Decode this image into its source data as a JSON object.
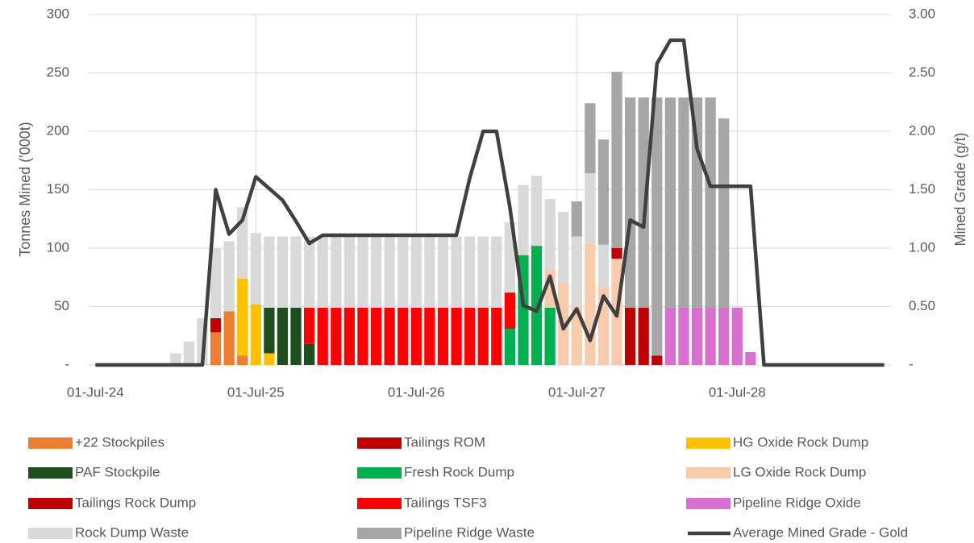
{
  "chart_data": {
    "type": "bar",
    "categories": [
      "01-Jul-24",
      null,
      null,
      null,
      null,
      null,
      null,
      null,
      null,
      null,
      null,
      null,
      "01-Jul-25",
      null,
      null,
      null,
      null,
      null,
      null,
      null,
      null,
      null,
      null,
      null,
      "01-Jul-26",
      null,
      null,
      null,
      null,
      null,
      null,
      null,
      null,
      null,
      null,
      null,
      "01-Jul-27",
      null,
      null,
      null,
      null,
      null,
      null,
      null,
      null,
      null,
      null,
      null,
      "01-Jul-28",
      null,
      null,
      null,
      null,
      null,
      null,
      null,
      null,
      null,
      null,
      null
    ],
    "ylabel": "Tonnes Mined ('000t)",
    "y2label": "Mined Grade (g/t)",
    "ylim": [
      0,
      300
    ],
    "yticks": [
      {
        "value": 0,
        "label": "-"
      },
      50,
      100,
      150,
      200,
      250,
      300
    ],
    "y2lim": [
      0,
      3
    ],
    "y2ticks": [
      {
        "value": 0,
        "label": "-"
      },
      {
        "value": 0.5,
        "label": "0.50"
      },
      {
        "value": 1,
        "label": "1.00"
      },
      {
        "value": 1.5,
        "label": "1.50"
      },
      {
        "value": 2,
        "label": "2.00"
      },
      {
        "value": 2.5,
        "label": "2.50"
      },
      {
        "value": 3,
        "label": "3.00"
      }
    ],
    "grid": true,
    "stacked": true,
    "legend": "bottom",
    "series": [
      {
        "name": "+22 Stockpiles",
        "color": "#ED7D31",
        "values": [
          null,
          null,
          null,
          null,
          null,
          null,
          null,
          null,
          null,
          28,
          46,
          8,
          null,
          null,
          null,
          null,
          null,
          null,
          null,
          null,
          null,
          null,
          null,
          null,
          null,
          null,
          null,
          null,
          null,
          null,
          null,
          null,
          null,
          null,
          null,
          null,
          null,
          null,
          null,
          null,
          null,
          null,
          null,
          null,
          null,
          null,
          null,
          null,
          null,
          null,
          null,
          null,
          null,
          null,
          null,
          null,
          null,
          null,
          null,
          null
        ]
      },
      {
        "name": "Tailings ROM",
        "color": "#C00000",
        "values": [
          null,
          null,
          null,
          null,
          null,
          null,
          null,
          null,
          null,
          12,
          null,
          null,
          null,
          null,
          null,
          null,
          null,
          null,
          null,
          null,
          null,
          null,
          null,
          null,
          null,
          null,
          null,
          null,
          null,
          null,
          null,
          null,
          null,
          null,
          null,
          null,
          null,
          null,
          null,
          null,
          null,
          null,
          null,
          null,
          null,
          null,
          null,
          null,
          null,
          null,
          null,
          null,
          null,
          null,
          null,
          null,
          null,
          null,
          null,
          null
        ]
      },
      {
        "name": "HG Oxide Rock Dump",
        "color": "#FFC000",
        "values": [
          null,
          null,
          null,
          null,
          null,
          null,
          null,
          null,
          null,
          null,
          null,
          66,
          52,
          10,
          null,
          null,
          null,
          null,
          null,
          null,
          null,
          null,
          null,
          null,
          null,
          null,
          null,
          null,
          null,
          null,
          null,
          null,
          null,
          null,
          null,
          null,
          null,
          null,
          null,
          null,
          null,
          null,
          null,
          null,
          null,
          null,
          null,
          null,
          null,
          null,
          null,
          null,
          null,
          null,
          null,
          null,
          null,
          null,
          null,
          null
        ]
      },
      {
        "name": "PAF Stockpile",
        "color": "#1E4D20",
        "values": [
          null,
          null,
          null,
          null,
          null,
          null,
          null,
          null,
          null,
          null,
          null,
          null,
          null,
          39,
          49,
          49,
          18,
          null,
          null,
          null,
          null,
          null,
          null,
          null,
          null,
          null,
          null,
          null,
          null,
          null,
          null,
          null,
          null,
          null,
          null,
          null,
          null,
          null,
          null,
          null,
          null,
          null,
          null,
          null,
          null,
          null,
          null,
          null,
          null,
          null,
          null,
          null,
          null,
          null,
          null,
          null,
          null,
          null,
          null,
          null
        ]
      },
      {
        "name": "Fresh Rock Dump",
        "color": "#00B050",
        "values": [
          null,
          null,
          null,
          null,
          null,
          null,
          null,
          null,
          null,
          null,
          null,
          null,
          null,
          null,
          null,
          null,
          null,
          null,
          null,
          null,
          null,
          null,
          null,
          null,
          null,
          null,
          null,
          null,
          null,
          null,
          null,
          31,
          94,
          102,
          49,
          null,
          null,
          null,
          null,
          null,
          null,
          null,
          null,
          null,
          null,
          null,
          null,
          null,
          null,
          null,
          null,
          null,
          null,
          null,
          null,
          null,
          null,
          null,
          null,
          null
        ]
      },
      {
        "name": "LG Oxide Rock Dump",
        "color": "#F8CBAD",
        "values": [
          null,
          null,
          null,
          null,
          null,
          null,
          null,
          null,
          null,
          null,
          null,
          null,
          null,
          null,
          null,
          null,
          null,
          null,
          null,
          null,
          null,
          null,
          null,
          null,
          null,
          null,
          null,
          null,
          null,
          null,
          null,
          null,
          null,
          null,
          33,
          71,
          50,
          104,
          67,
          91,
          null,
          null,
          null,
          null,
          null,
          null,
          null,
          null,
          null,
          null,
          null,
          null,
          null,
          null,
          null,
          null,
          null,
          null,
          null,
          null
        ]
      },
      {
        "name": "Tailings Rock Dump",
        "color": "#BE0000",
        "values": [
          null,
          null,
          null,
          null,
          null,
          null,
          null,
          null,
          null,
          null,
          null,
          null,
          null,
          null,
          null,
          null,
          null,
          null,
          null,
          null,
          null,
          null,
          null,
          null,
          null,
          null,
          null,
          null,
          null,
          null,
          null,
          null,
          null,
          null,
          null,
          null,
          null,
          null,
          null,
          9,
          49,
          49,
          8,
          null,
          null,
          null,
          null,
          null,
          null,
          null,
          null,
          null,
          null,
          null,
          null,
          null,
          null,
          null,
          null,
          null
        ]
      },
      {
        "name": "Tailings TSF3",
        "color": "#FF0000",
        "values": [
          null,
          null,
          null,
          null,
          null,
          null,
          null,
          null,
          null,
          null,
          null,
          null,
          null,
          null,
          null,
          null,
          31,
          49,
          49,
          49,
          49,
          49,
          49,
          49,
          49,
          49,
          49,
          49,
          49,
          49,
          49,
          31,
          null,
          null,
          null,
          null,
          null,
          null,
          null,
          null,
          null,
          null,
          null,
          null,
          null,
          null,
          null,
          null,
          null,
          null,
          null,
          null,
          null,
          null,
          null,
          null,
          null,
          null,
          null,
          null
        ]
      },
      {
        "name": "Pipeline Ridge Oxide",
        "color": "#D86FD0",
        "values": [
          null,
          null,
          null,
          null,
          null,
          null,
          null,
          null,
          null,
          null,
          null,
          null,
          null,
          null,
          null,
          null,
          null,
          null,
          null,
          null,
          null,
          null,
          null,
          null,
          null,
          null,
          null,
          null,
          null,
          null,
          null,
          null,
          null,
          null,
          null,
          null,
          null,
          null,
          null,
          null,
          null,
          null,
          null,
          49,
          49,
          49,
          49,
          49,
          49,
          11,
          null,
          null,
          null,
          null,
          null,
          null,
          null,
          null,
          null,
          null
        ]
      },
      {
        "name": "Rock Dump Waste",
        "color": "#D9D9D9",
        "values": [
          null,
          null,
          null,
          null,
          null,
          null,
          10,
          20,
          40,
          60,
          60,
          61,
          61,
          61,
          61,
          61,
          61,
          61,
          61,
          61,
          61,
          61,
          61,
          61,
          61,
          61,
          61,
          61,
          61,
          61,
          61,
          60,
          60,
          60,
          60,
          60,
          60,
          60,
          36,
          null,
          null,
          null,
          null,
          null,
          null,
          null,
          null,
          null,
          null,
          null,
          null,
          null,
          null,
          null,
          null,
          null,
          null,
          null,
          null,
          null
        ]
      },
      {
        "name": "Pipeline Ridge Waste",
        "color": "#A6A6A6",
        "values": [
          null,
          null,
          null,
          null,
          null,
          null,
          null,
          null,
          null,
          null,
          null,
          null,
          null,
          null,
          null,
          null,
          null,
          null,
          null,
          null,
          null,
          null,
          null,
          null,
          null,
          null,
          null,
          null,
          null,
          null,
          null,
          null,
          null,
          null,
          null,
          null,
          30,
          60,
          90,
          151,
          180,
          180,
          221,
          180,
          180,
          180,
          180,
          162,
          null,
          null,
          null,
          null,
          null,
          null,
          null,
          null,
          null,
          null,
          null,
          null
        ]
      },
      {
        "name": "Average Mined Grade - Gold",
        "color": "#404040",
        "type": "line",
        "axis": "y2",
        "values": [
          0,
          0,
          0,
          0,
          0,
          0,
          0,
          0,
          0,
          1.5,
          1.12,
          1.24,
          1.61,
          1.51,
          1.41,
          1.23,
          1.04,
          1.11,
          1.11,
          1.11,
          1.11,
          1.11,
          1.11,
          1.11,
          1.11,
          1.11,
          1.11,
          1.11,
          1.6,
          2.0,
          2.0,
          1.35,
          0.51,
          0.46,
          0.76,
          0.31,
          0.48,
          0.21,
          0.59,
          0.42,
          1.24,
          1.18,
          2.58,
          2.78,
          2.78,
          1.85,
          1.53,
          1.53,
          1.53,
          1.53,
          0,
          0,
          0,
          0,
          0,
          0,
          0,
          0,
          0,
          0
        ]
      }
    ]
  }
}
